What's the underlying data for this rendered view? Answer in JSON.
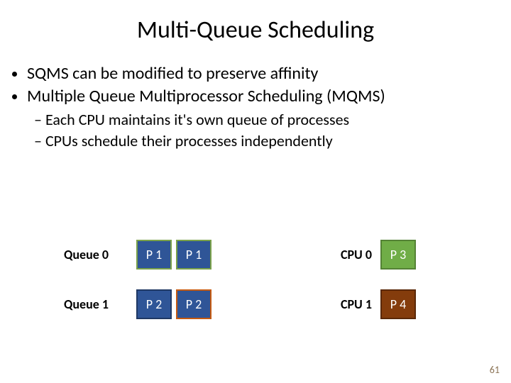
{
  "title": "Multi-Queue Scheduling",
  "bullets": {
    "b1": "SQMS can be modified to preserve affinity",
    "b2": "Multiple Queue Multiprocessor Scheduling (MQMS)",
    "sub1": "Each CPU maintains it's own queue of processes",
    "sub2": "CPUs schedule their processes independently"
  },
  "diagram": {
    "row0": {
      "queue_label": "Queue 0",
      "p1": {
        "label": "P 1",
        "bg": "#2f5597",
        "border": "#7aa14a"
      },
      "p2": {
        "label": "P 1",
        "bg": "#2f5597",
        "border": "#7aa14a"
      },
      "cpu_label": "CPU 0",
      "cpu_box": {
        "label": "P 3",
        "bg": "#70ad47",
        "border": "#548235"
      }
    },
    "row1": {
      "queue_label": "Queue 1",
      "p1": {
        "label": "P 2",
        "bg": "#2f5597",
        "border": "#1f3864"
      },
      "p2": {
        "label": "P 2",
        "bg": "#2f5597",
        "border": "#c55a11"
      },
      "cpu_label": "CPU 1",
      "cpu_box": {
        "label": "P 4",
        "bg": "#843c0c",
        "border": "#5a2808"
      }
    }
  },
  "page_number": "61"
}
